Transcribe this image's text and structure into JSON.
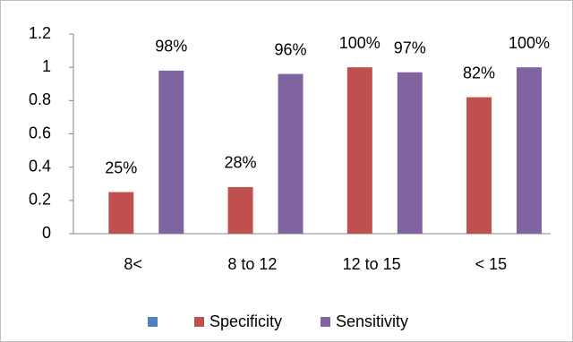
{
  "chart_data": {
    "type": "bar",
    "categories": [
      "8<",
      "8 to 12",
      "12 to 15",
      "< 15"
    ],
    "series": [
      {
        "color": "#4f81bd",
        "values": [
          null,
          null,
          null,
          null
        ]
      },
      {
        "name": "Specificity",
        "color": "#c0504d",
        "values": [
          0.25,
          0.28,
          1.0,
          0.82
        ],
        "value_labels": [
          "25%",
          "28%",
          "100%",
          "82%"
        ]
      },
      {
        "name": "Sensitivity",
        "color": "#8064a2",
        "values": [
          0.98,
          0.96,
          0.97,
          1.0
        ],
        "value_labels": [
          "98%",
          "96%",
          "97%",
          "100%"
        ]
      }
    ],
    "ylim": [
      0,
      1.2
    ],
    "yticks": [
      0,
      0.2,
      0.4,
      0.6,
      0.8,
      1,
      1.2
    ],
    "grid": false,
    "legend": "bottom"
  }
}
